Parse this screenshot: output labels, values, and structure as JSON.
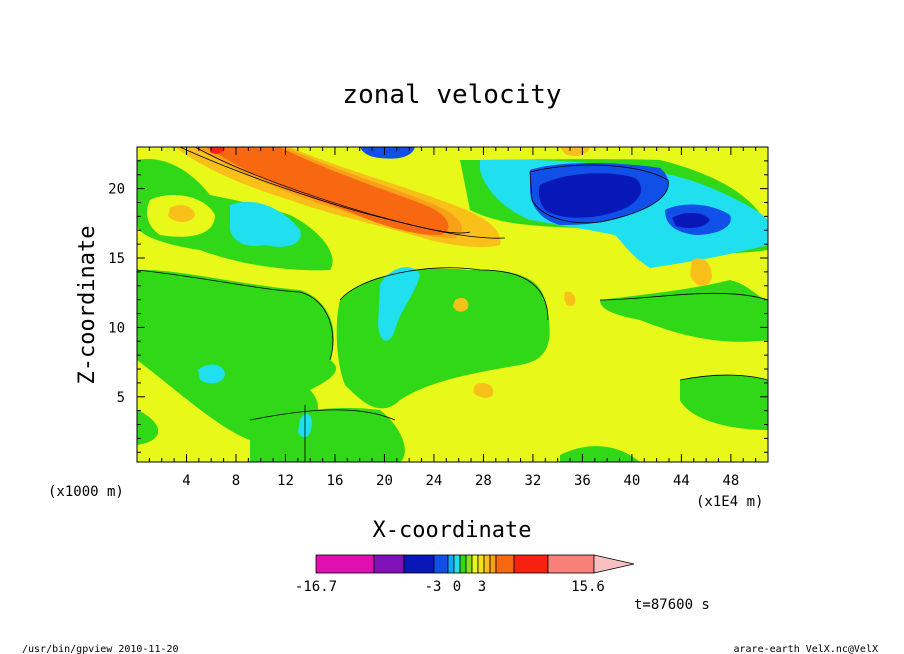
{
  "chart_data": {
    "type": "heatmap",
    "title": "zonal velocity",
    "xlabel": "X-coordinate",
    "ylabel": "Z-coordinate",
    "x_unit": "(x1E4 m)",
    "y_unit": "(x1000 m)",
    "xlim": [
      0,
      51
    ],
    "ylim": [
      0.3,
      23
    ],
    "x_ticks": [
      "4",
      "8",
      "12",
      "16",
      "20",
      "24",
      "28",
      "32",
      "36",
      "40",
      "44",
      "48"
    ],
    "y_ticks": [
      "5",
      "10",
      "15",
      "20"
    ],
    "colorbar": {
      "min_label": "-16.7",
      "max_label": "15.6",
      "tick_labels": [
        "-3",
        "0",
        "3"
      ],
      "colors": [
        "#e010b0",
        "#8010b8",
        "#0818b8",
        "#1050e8",
        "#10a8f8",
        "#20e0f0",
        "#30d818",
        "#88e018",
        "#e8f818",
        "#f8e018",
        "#f8c018",
        "#f8a018",
        "#f86810",
        "#f82010",
        "#f88078"
      ],
      "extend_color": "#f8c0c0"
    },
    "time_label": "t=87600 s",
    "footer_left": "/usr/bin/gpview  2010-11-20",
    "footer_right": "arare-earth_VelX.nc@VelX"
  }
}
